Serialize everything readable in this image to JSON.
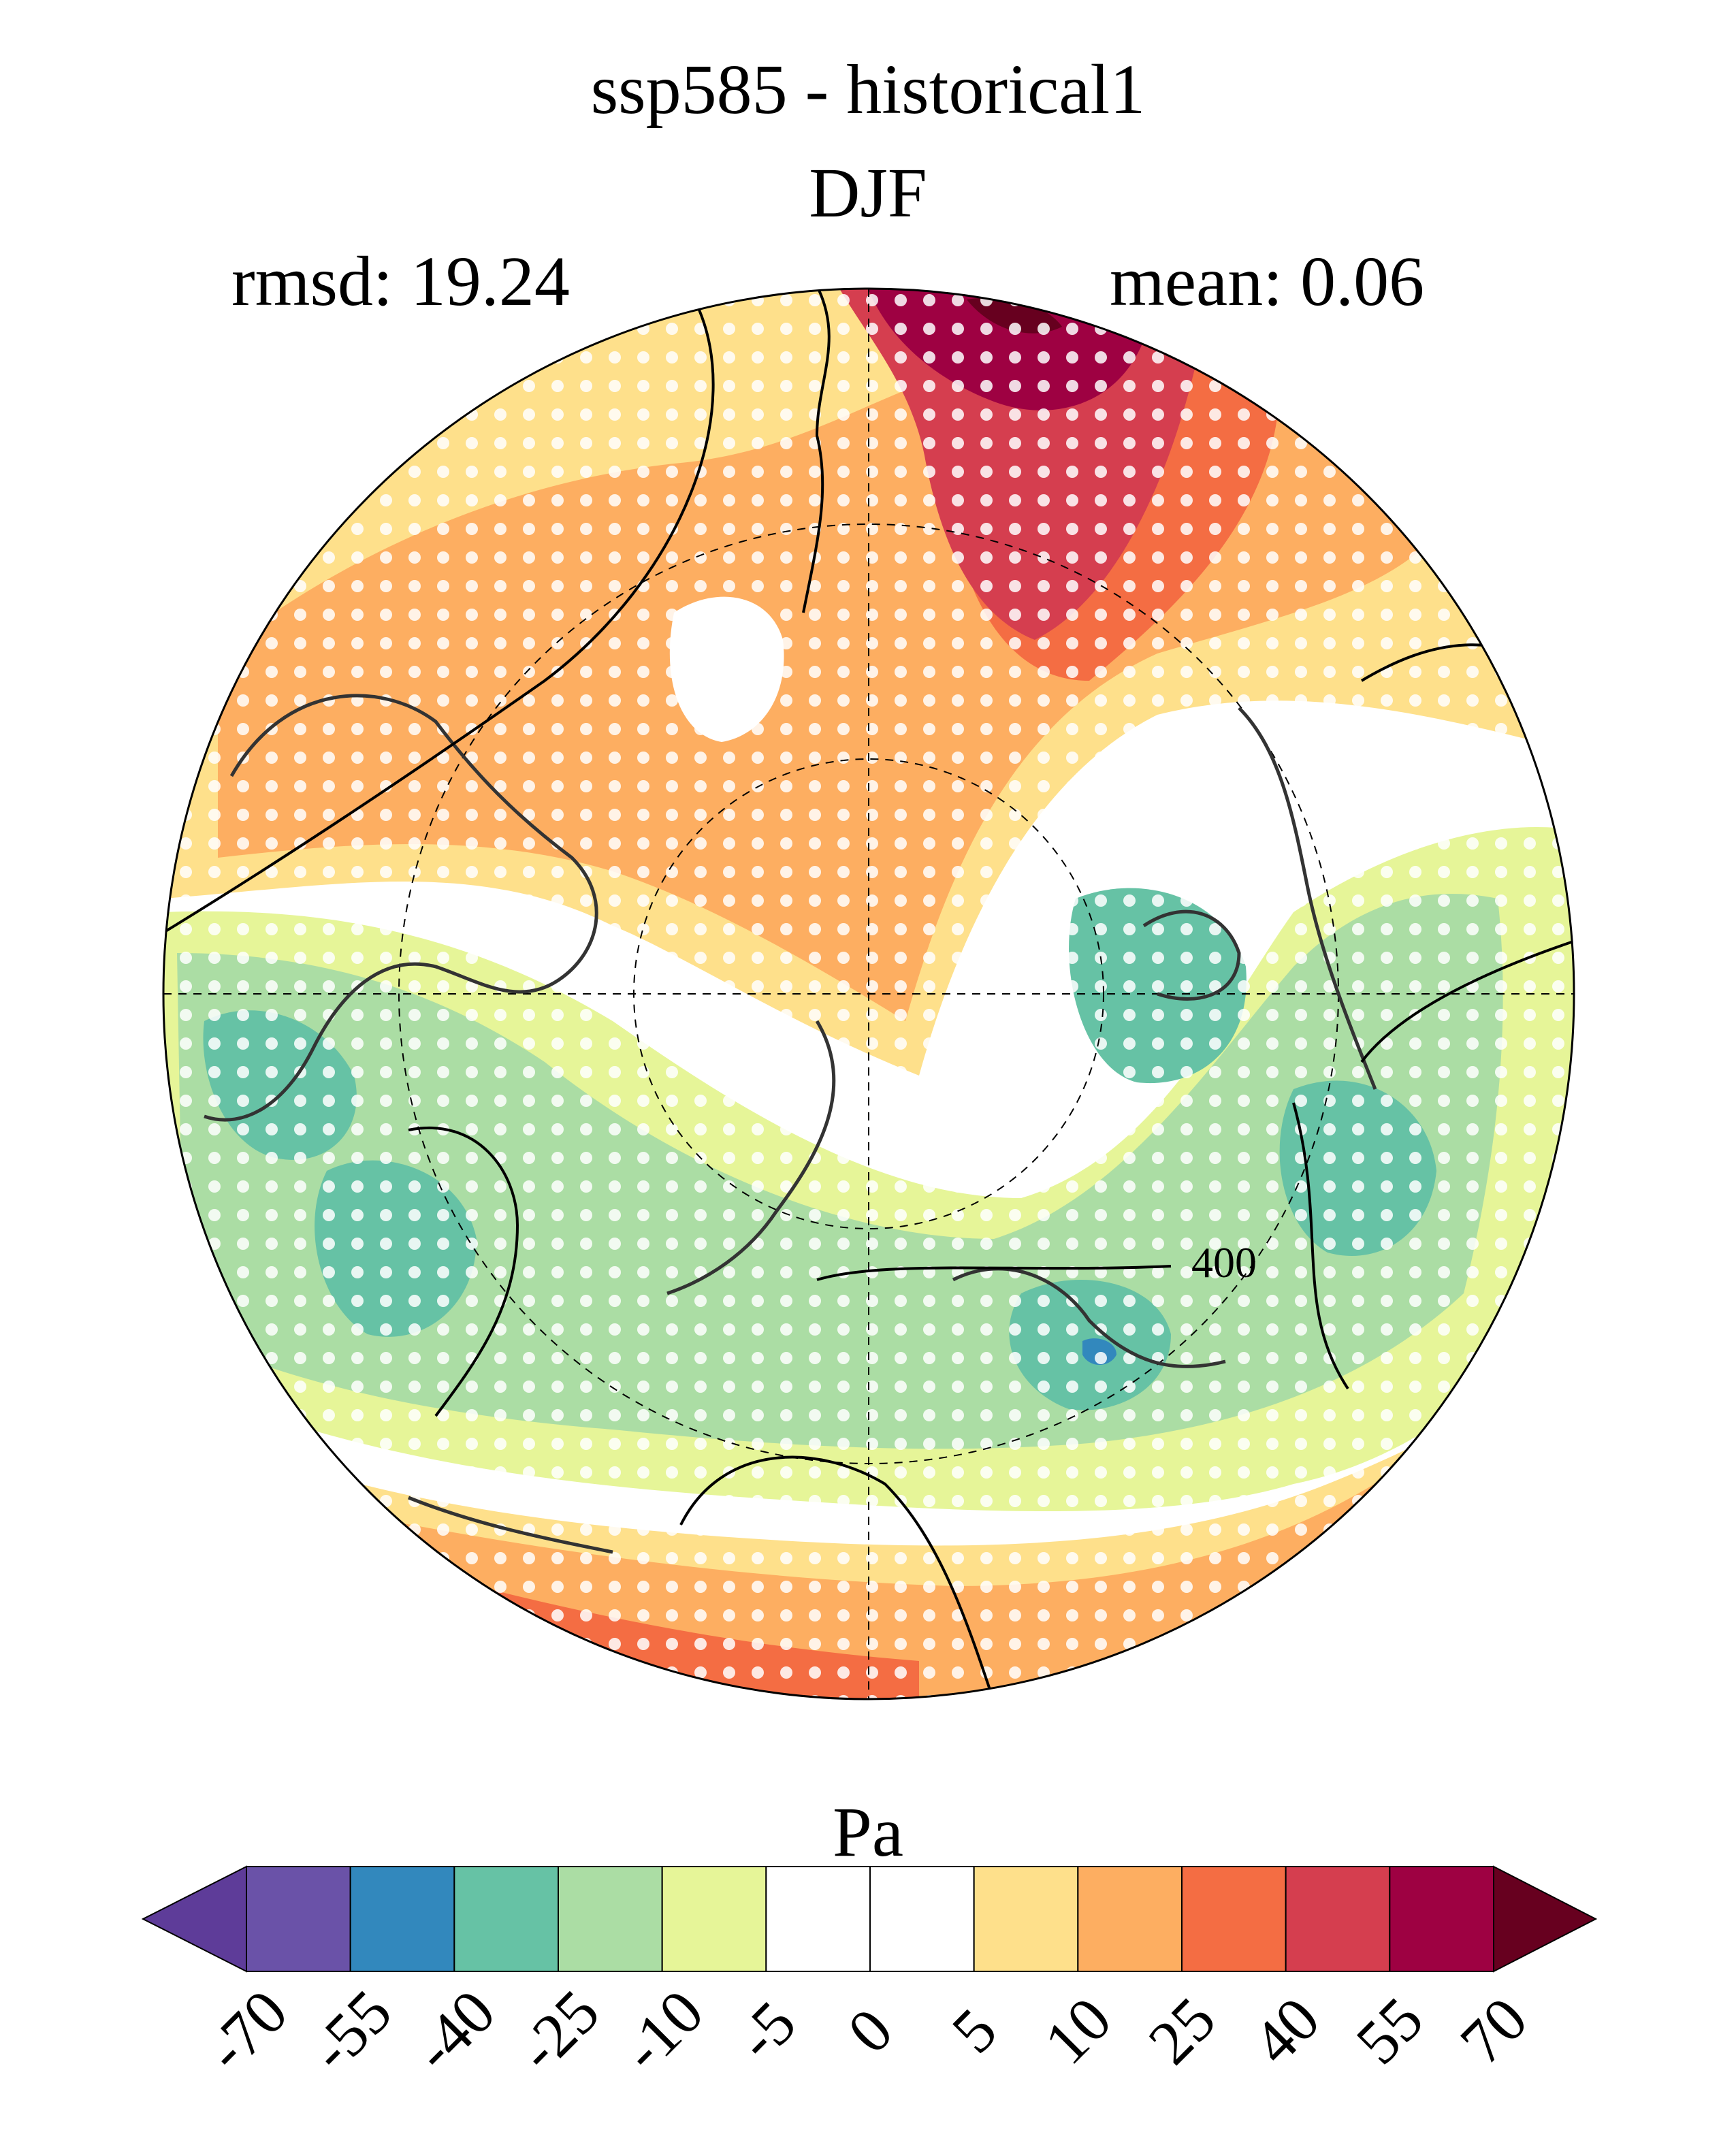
{
  "title": "ssp585 - historical1",
  "season": "DJF",
  "stats": {
    "rmsd": "rmsd: 19.24",
    "mean": "mean: 0.06"
  },
  "contour_label": "400",
  "colorbar": {
    "units": "Pa",
    "ticks": [
      "-70",
      "-55",
      "-40",
      "-25",
      "-10",
      "-5",
      "0",
      "5",
      "10",
      "25",
      "40",
      "55",
      "70"
    ],
    "colors": [
      "#5e3c99",
      "#6a52a8",
      "#3288bd",
      "#66c2a5",
      "#abdda4",
      "#e6f598",
      "#ffffff",
      "#ffffff",
      "#fee08b",
      "#fdae61",
      "#f46d43",
      "#d53e4f",
      "#9e0142",
      "#67001f"
    ]
  }
}
